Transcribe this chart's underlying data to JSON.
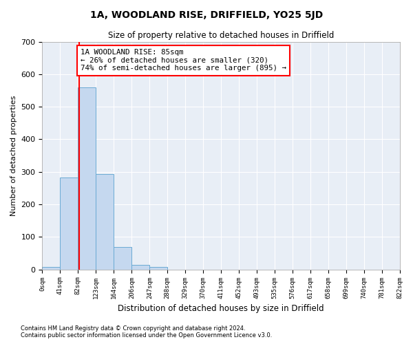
{
  "title": "1A, WOODLAND RISE, DRIFFIELD, YO25 5JD",
  "subtitle": "Size of property relative to detached houses in Driffield",
  "xlabel": "Distribution of detached houses by size in Driffield",
  "ylabel": "Number of detached properties",
  "bin_edges": [
    0,
    41,
    82,
    123,
    164,
    206,
    247,
    288,
    329,
    370,
    411,
    452,
    493,
    535,
    576,
    617,
    658,
    699,
    740,
    781,
    822
  ],
  "bar_heights": [
    8,
    283,
    560,
    293,
    70,
    15,
    8,
    0,
    0,
    0,
    0,
    0,
    0,
    0,
    0,
    0,
    0,
    0,
    0,
    0
  ],
  "bar_color": "#c5d8ef",
  "bar_edge_color": "#6aaad4",
  "property_line_x": 85,
  "property_line_color": "red",
  "annotation_line1": "1A WOODLAND RISE: 85sqm",
  "annotation_line2": "← 26% of detached houses are smaller (320)",
  "annotation_line3": "74% of semi-detached houses are larger (895) →",
  "annotation_box_color": "white",
  "annotation_box_edge_color": "red",
  "ylim": [
    0,
    700
  ],
  "xlim": [
    0,
    822
  ],
  "background_color": "#e8eef6",
  "footer_line1": "Contains HM Land Registry data © Crown copyright and database right 2024.",
  "footer_line2": "Contains public sector information licensed under the Open Government Licence v3.0."
}
